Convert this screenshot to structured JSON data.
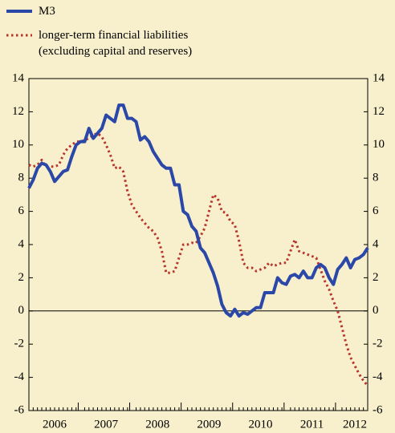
{
  "chart_data": {
    "type": "line",
    "categories": [
      null,
      null,
      null,
      null,
      null,
      null,
      "2006",
      null,
      null,
      null,
      null,
      null,
      null,
      null,
      null,
      null,
      null,
      null,
      "2007",
      null,
      null,
      null,
      null,
      null,
      null,
      null,
      null,
      null,
      null,
      null,
      "2008",
      null,
      null,
      null,
      null,
      null,
      null,
      null,
      null,
      null,
      null,
      null,
      "2009",
      null,
      null,
      null,
      null,
      null,
      null,
      null,
      null,
      null,
      null,
      null,
      "2010",
      null,
      null,
      null,
      null,
      null,
      null,
      null,
      null,
      null,
      null,
      null,
      "2011",
      null,
      null,
      null,
      null,
      null,
      null,
      null,
      null,
      null,
      "2012",
      null,
      null,
      null
    ],
    "series": [
      {
        "name": "M3",
        "color": "#2b48a8",
        "style": "solid",
        "values": [
          7.4,
          7.9,
          8.6,
          8.9,
          8.8,
          8.4,
          7.8,
          8.1,
          8.4,
          8.5,
          9.3,
          10.0,
          10.2,
          10.2,
          11.0,
          10.4,
          10.7,
          11.0,
          11.8,
          11.6,
          11.4,
          12.4,
          12.4,
          11.6,
          11.6,
          11.4,
          10.3,
          10.5,
          10.2,
          9.6,
          9.2,
          8.8,
          8.6,
          8.6,
          7.6,
          7.6,
          6.0,
          5.8,
          5.1,
          4.8,
          3.8,
          3.5,
          2.9,
          2.3,
          1.5,
          0.4,
          -0.1,
          -0.3,
          0.1,
          -0.3,
          -0.1,
          -0.2,
          0.0,
          0.2,
          0.2,
          1.1,
          1.1,
          1.1,
          2.0,
          1.7,
          1.6,
          2.1,
          2.2,
          2.0,
          2.4,
          2.0,
          2.0,
          2.6,
          2.8,
          2.6,
          2.0,
          1.6,
          2.5,
          2.8,
          3.2,
          2.6,
          3.1,
          3.2,
          3.4,
          3.8
        ]
      },
      {
        "name": "longer-term financial liabilities (excluding capital and reserves)",
        "color": "#b8352c",
        "style": "dotted",
        "values": [
          8.8,
          8.7,
          8.8,
          9.1,
          8.7,
          8.7,
          8.7,
          8.8,
          9.4,
          9.8,
          10.0,
          10.2,
          10.2,
          10.3,
          10.4,
          10.6,
          10.7,
          10.5,
          10.0,
          9.4,
          8.6,
          8.7,
          8.4,
          7.2,
          6.4,
          6.0,
          5.6,
          5.3,
          5.0,
          4.8,
          4.4,
          3.6,
          2.3,
          2.3,
          2.4,
          3.2,
          4.0,
          4.0,
          4.1,
          4.1,
          4.5,
          5.0,
          6.0,
          7.0,
          6.8,
          6.0,
          5.9,
          5.4,
          5.2,
          4.2,
          2.9,
          2.6,
          2.6,
          2.4,
          2.5,
          2.6,
          2.9,
          2.7,
          2.8,
          2.9,
          2.9,
          3.6,
          4.3,
          3.6,
          3.5,
          3.4,
          3.3,
          3.2,
          2.5,
          1.8,
          1.3,
          0.6,
          0.0,
          -1.0,
          -2.0,
          -2.8,
          -3.3,
          -3.8,
          -4.2,
          -4.5
        ]
      }
    ],
    "ylim": [
      -6,
      14
    ],
    "yticks": [
      -6,
      -4,
      -2,
      0,
      2,
      4,
      6,
      8,
      10,
      12,
      14
    ]
  }
}
